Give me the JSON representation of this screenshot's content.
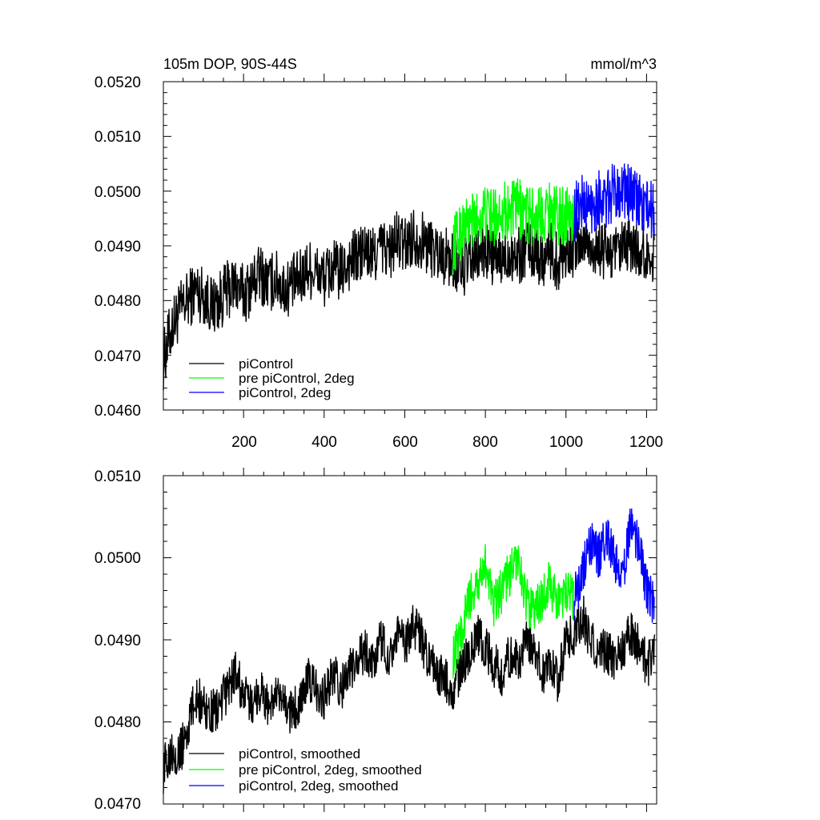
{
  "chart_data": [
    {
      "type": "line",
      "title": "105m DOP, 90S-44S",
      "units": "mmol/m^3",
      "xlim": [
        1,
        1225
      ],
      "ylim": [
        0.046,
        0.052
      ],
      "xticks": [
        200,
        400,
        600,
        800,
        1000,
        1200
      ],
      "xtick_labels": [
        "200",
        "400",
        "600",
        "800",
        "1000",
        "1200"
      ],
      "yticks": [
        0.046,
        0.047,
        0.048,
        0.049,
        0.05,
        0.051,
        0.052
      ],
      "ytick_labels": [
        "0.0460",
        "0.0470",
        "0.0480",
        "0.0490",
        "0.0500",
        "0.0510",
        "0.0520"
      ],
      "legend_position": "bottom-left",
      "series": [
        {
          "name": "piControl",
          "color": "#000000",
          "x_start": 1,
          "x_step": 20,
          "values": [
            0.0469,
            0.0475,
            0.0478,
            0.048,
            0.0482,
            0.0481,
            0.0479,
            0.048,
            0.0482,
            0.0483,
            0.0481,
            0.0483,
            0.0485,
            0.0483,
            0.0484,
            0.0482,
            0.0483,
            0.0484,
            0.0486,
            0.0485,
            0.0484,
            0.0486,
            0.0485,
            0.0487,
            0.0488,
            0.0489,
            0.0488,
            0.049,
            0.0489,
            0.0491,
            0.049,
            0.0492,
            0.0491,
            0.049,
            0.0489,
            0.0488,
            0.0487,
            0.0486,
            0.0487,
            0.0488,
            0.0489,
            0.0488,
            0.0487,
            0.0489,
            0.0488,
            0.049,
            0.0489,
            0.0488,
            0.0489,
            0.0487,
            0.049,
            0.0489,
            0.0491,
            0.049,
            0.0489,
            0.0489,
            0.0488,
            0.0489,
            0.049,
            0.0489,
            0.0488,
            0.0489
          ]
        },
        {
          "name": "pre piControl, 2deg",
          "color": "#00ff00",
          "x_start": 720,
          "x_step": 20,
          "values": [
            0.049,
            0.0493,
            0.0494,
            0.0495,
            0.0496,
            0.0495,
            0.0497,
            0.0496,
            0.0497,
            0.0496,
            0.0495,
            0.0496,
            0.0497,
            0.0495,
            0.0496,
            0.0495
          ]
        },
        {
          "name": "piControl, 2deg",
          "color": "#0000ff",
          "x_start": 1020,
          "x_step": 20,
          "values": [
            0.0496,
            0.0498,
            0.0497,
            0.0499,
            0.0498,
            0.05,
            0.0501,
            0.0499,
            0.0498,
            0.0497,
            0.0496
          ]
        }
      ]
    },
    {
      "type": "line",
      "title": "",
      "units": "",
      "xlim": [
        1,
        1225
      ],
      "ylim": [
        0.047,
        0.051
      ],
      "xticks": [
        200,
        400,
        600,
        800,
        1000,
        1200
      ],
      "xtick_labels": [],
      "yticks": [
        0.047,
        0.048,
        0.049,
        0.05,
        0.051
      ],
      "ytick_labels": [
        "0.0470",
        "0.0480",
        "0.0490",
        "0.0500",
        "0.0510"
      ],
      "legend_position": "bottom-left",
      "series": [
        {
          "name": "piControl, smoothed",
          "color": "#000000",
          "x_start": 1,
          "x_step": 20,
          "values": [
            0.0474,
            0.0477,
            0.0476,
            0.0479,
            0.0483,
            0.0482,
            0.0481,
            0.0482,
            0.0484,
            0.0486,
            0.0483,
            0.0482,
            0.0484,
            0.0482,
            0.0483,
            0.0482,
            0.0481,
            0.0483,
            0.0485,
            0.0484,
            0.0483,
            0.0486,
            0.0484,
            0.0486,
            0.0487,
            0.0489,
            0.0487,
            0.049,
            0.0488,
            0.0491,
            0.0489,
            0.0492,
            0.049,
            0.0487,
            0.0486,
            0.0485,
            0.0484,
            0.0487,
            0.0488,
            0.0491,
            0.0489,
            0.0487,
            0.0486,
            0.0488,
            0.0487,
            0.049,
            0.0489,
            0.0486,
            0.0487,
            0.0485,
            0.049,
            0.0491,
            0.0493,
            0.049,
            0.0488,
            0.0489,
            0.0487,
            0.0489,
            0.0491,
            0.0489,
            0.0487,
            0.0488
          ]
        },
        {
          "name": "pre piControl, 2deg, smoothed",
          "color": "#00ff00",
          "x_start": 720,
          "x_step": 20,
          "values": [
            0.0488,
            0.0491,
            0.0495,
            0.0497,
            0.0499,
            0.0494,
            0.0496,
            0.0498,
            0.05,
            0.0495,
            0.0493,
            0.0495,
            0.0497,
            0.0494,
            0.0496,
            0.0495
          ]
        },
        {
          "name": "piControl, 2deg, smoothed",
          "color": "#0000ff",
          "x_start": 1020,
          "x_step": 20,
          "values": [
            0.0495,
            0.0498,
            0.0502,
            0.05,
            0.0503,
            0.05,
            0.0497,
            0.0504,
            0.0502,
            0.0496,
            0.0494
          ]
        }
      ]
    }
  ]
}
